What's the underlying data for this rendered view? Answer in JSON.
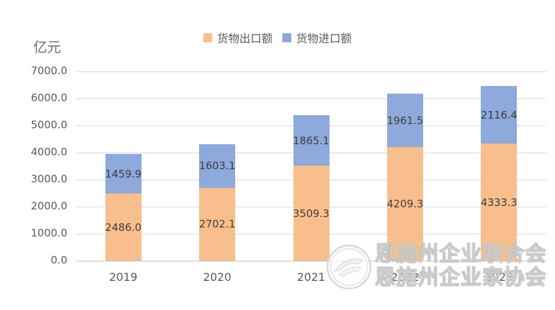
{
  "unit_label": "亿元",
  "watermark": {
    "line1": "恩施州企业联合会",
    "line2": "恩施州企业家协会"
  },
  "colors": {
    "export_fill": "#F8BF8C",
    "import_fill": "#8EA9DB",
    "gridline": "#d9d9d9",
    "tick_text": "#595959",
    "data_label_text": "#3d3d3d"
  },
  "chart_data": {
    "type": "bar",
    "stacked": true,
    "title": "",
    "ylabel": "亿元",
    "xlabel": "",
    "categories": [
      "2019",
      "2020",
      "2021",
      "2022",
      "2023"
    ],
    "series": [
      {
        "name": "货物出口额",
        "color": "#F8BF8C",
        "values": [
          2486.0,
          2702.1,
          3509.3,
          4209.3,
          4333.3
        ]
      },
      {
        "name": "货物进口额",
        "color": "#8EA9DB",
        "values": [
          1459.9,
          1603.1,
          1865.1,
          1961.5,
          2116.4
        ]
      }
    ],
    "ylim": [
      0,
      7000
    ],
    "ytick_step": 1000,
    "yticks": [
      "7000.0",
      "6000.0",
      "5000.0",
      "4000.0",
      "3000.0",
      "2000.0",
      "1000.0",
      "0.0"
    ],
    "grid": true,
    "legend_position": "top-center",
    "data_labels": true
  }
}
